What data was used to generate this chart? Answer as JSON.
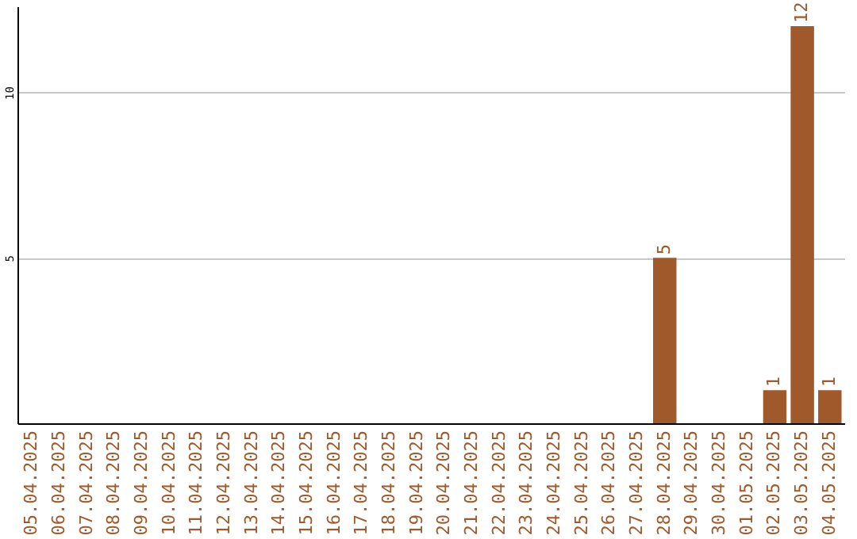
{
  "chart_data": {
    "type": "bar",
    "categories": [
      "05.04.2025",
      "06.04.2025",
      "07.04.2025",
      "08.04.2025",
      "09.04.2025",
      "10.04.2025",
      "11.04.2025",
      "12.04.2025",
      "13.04.2025",
      "14.04.2025",
      "15.04.2025",
      "16.04.2025",
      "17.04.2025",
      "18.04.2025",
      "19.04.2025",
      "20.04.2025",
      "21.04.2025",
      "22.04.2025",
      "23.04.2025",
      "24.04.2025",
      "25.04.2025",
      "26.04.2025",
      "27.04.2025",
      "28.04.2025",
      "29.04.2025",
      "30.04.2025",
      "01.05.2025",
      "02.05.2025",
      "03.05.2025",
      "04.05.2025"
    ],
    "values": [
      0,
      0,
      0,
      0,
      0,
      0,
      0,
      0,
      0,
      0,
      0,
      0,
      0,
      0,
      0,
      0,
      0,
      0,
      0,
      0,
      0,
      0,
      0,
      5,
      0,
      0,
      0,
      1,
      12,
      1
    ],
    "value_labels": [
      null,
      null,
      null,
      null,
      null,
      null,
      null,
      null,
      null,
      null,
      null,
      null,
      null,
      null,
      null,
      null,
      null,
      null,
      null,
      null,
      null,
      null,
      null,
      "5",
      null,
      null,
      null,
      "1",
      "12",
      "1"
    ],
    "color": "#a0592b",
    "ylim": [
      0,
      12.6
    ],
    "yticks": [
      5,
      10
    ],
    "grid": "y"
  }
}
